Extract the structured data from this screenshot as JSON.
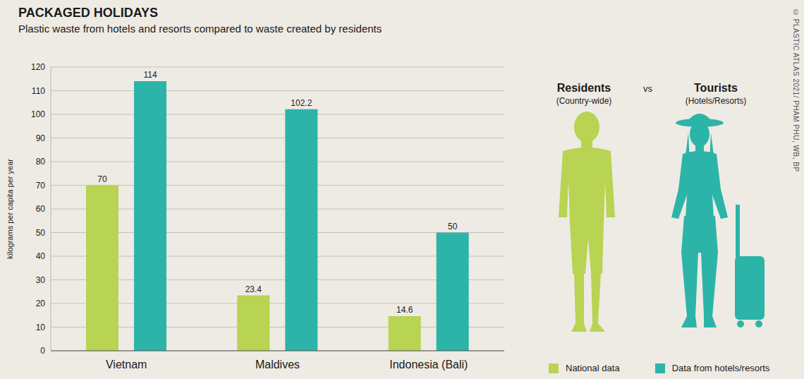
{
  "chart_data": {
    "type": "bar",
    "title": "PACKAGED HOLIDAYS",
    "subtitle": "Plastic waste from hotels and resorts compared to waste created by residents",
    "y_label": "kilograms per capita per year",
    "categories": [
      "Vietnam",
      "Maldives",
      "Indonesia (Bali)"
    ],
    "series": [
      {
        "name": "National data",
        "color": "#b8d452",
        "values": [
          70,
          23.4,
          14.6
        ]
      },
      {
        "name": "Data from hotels/resorts",
        "color": "#2db4a9",
        "values": [
          114,
          102.2,
          50
        ]
      }
    ],
    "ylim": [
      0,
      120
    ],
    "yticks": [
      0,
      10,
      20,
      30,
      40,
      50,
      60,
      70,
      80,
      90,
      100,
      110,
      120
    ],
    "grid": true,
    "data_labels": true,
    "legend": "lower right",
    "annotations": [
      "Residents",
      "(Country-wide)",
      "vs",
      "Tourists",
      "(Hotels/Resorts)"
    ],
    "source": "© PLASTIC ATLAS 2021/ PHAM PHU, WB, BP"
  }
}
